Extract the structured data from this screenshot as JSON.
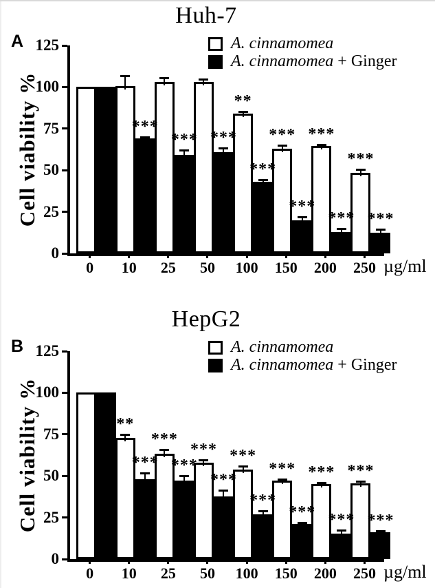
{
  "figure": {
    "background_color": "#ffffff",
    "bar_fill_colors": {
      "series1": "#ffffff",
      "series2": "#000000"
    },
    "axis_color": "#000000"
  },
  "chart_data": [
    {
      "type": "bar",
      "panel_label": "A",
      "title": "Huh-7",
      "ylabel": "Cell viability %",
      "xlabel_unit": "µg/ml",
      "ylim": [
        0,
        125
      ],
      "yticks": [
        0,
        25,
        50,
        75,
        100,
        125
      ],
      "grid": false,
      "legend_position": "top-right-inside",
      "categories": [
        "0",
        "10",
        "25",
        "50",
        "100",
        "150",
        "200",
        "250"
      ],
      "series": [
        {
          "name": "A. cinnamomea",
          "name_italic": "A. cinnamomea",
          "name_suffix": "",
          "fill": "white",
          "values": [
            100,
            100.5,
            103,
            103,
            84,
            63,
            64.5,
            48.5
          ],
          "errors": [
            0,
            6,
            2,
            1.5,
            1,
            1.5,
            0.5,
            1.5
          ],
          "significance": [
            "",
            "",
            "",
            "",
            "**",
            "***",
            "***",
            "***"
          ]
        },
        {
          "name": "A. cinnamomea + Ginger",
          "name_italic": "A. cinnamomea",
          "name_suffix": " + Ginger",
          "fill": "black",
          "values": [
            100,
            69,
            59,
            61,
            43,
            20,
            13,
            12.5
          ],
          "errors": [
            0,
            0.5,
            2.5,
            2,
            1,
            1.5,
            1.5,
            1.5
          ],
          "significance": [
            "",
            "***",
            "***",
            "***",
            "***",
            "***",
            "***",
            "***"
          ]
        }
      ]
    },
    {
      "type": "bar",
      "panel_label": "B",
      "title": "HepG2",
      "ylabel": "Cell viability %",
      "xlabel_unit": "µg/ml",
      "ylim": [
        0,
        125
      ],
      "yticks": [
        0,
        25,
        50,
        75,
        100,
        125
      ],
      "grid": false,
      "legend_position": "top-right-inside",
      "categories": [
        "0",
        "10",
        "25",
        "50",
        "100",
        "150",
        "200",
        "250"
      ],
      "series": [
        {
          "name": "A. cinnamomea",
          "name_italic": "A. cinnamomea",
          "name_suffix": "",
          "fill": "white",
          "values": [
            100,
            73,
            63.5,
            58,
            54,
            47,
            45,
            45.5
          ],
          "errors": [
            0,
            1.5,
            2,
            1,
            1.5,
            0.5,
            0.5,
            1
          ],
          "significance": [
            "",
            "**",
            "***",
            "***",
            "***",
            "***",
            "***",
            "***"
          ]
        },
        {
          "name": "A. cinnamomea + Ginger",
          "name_italic": "A. cinnamomea",
          "name_suffix": " + Ginger",
          "fill": "black",
          "values": [
            100,
            48,
            47,
            37.5,
            27,
            21,
            15.5,
            16
          ],
          "errors": [
            0,
            3.5,
            2.5,
            3.5,
            1.5,
            0.5,
            1.5,
            0.5
          ],
          "significance": [
            "",
            "***",
            "***",
            "***",
            "***",
            "***",
            "***",
            "***"
          ]
        }
      ]
    }
  ]
}
